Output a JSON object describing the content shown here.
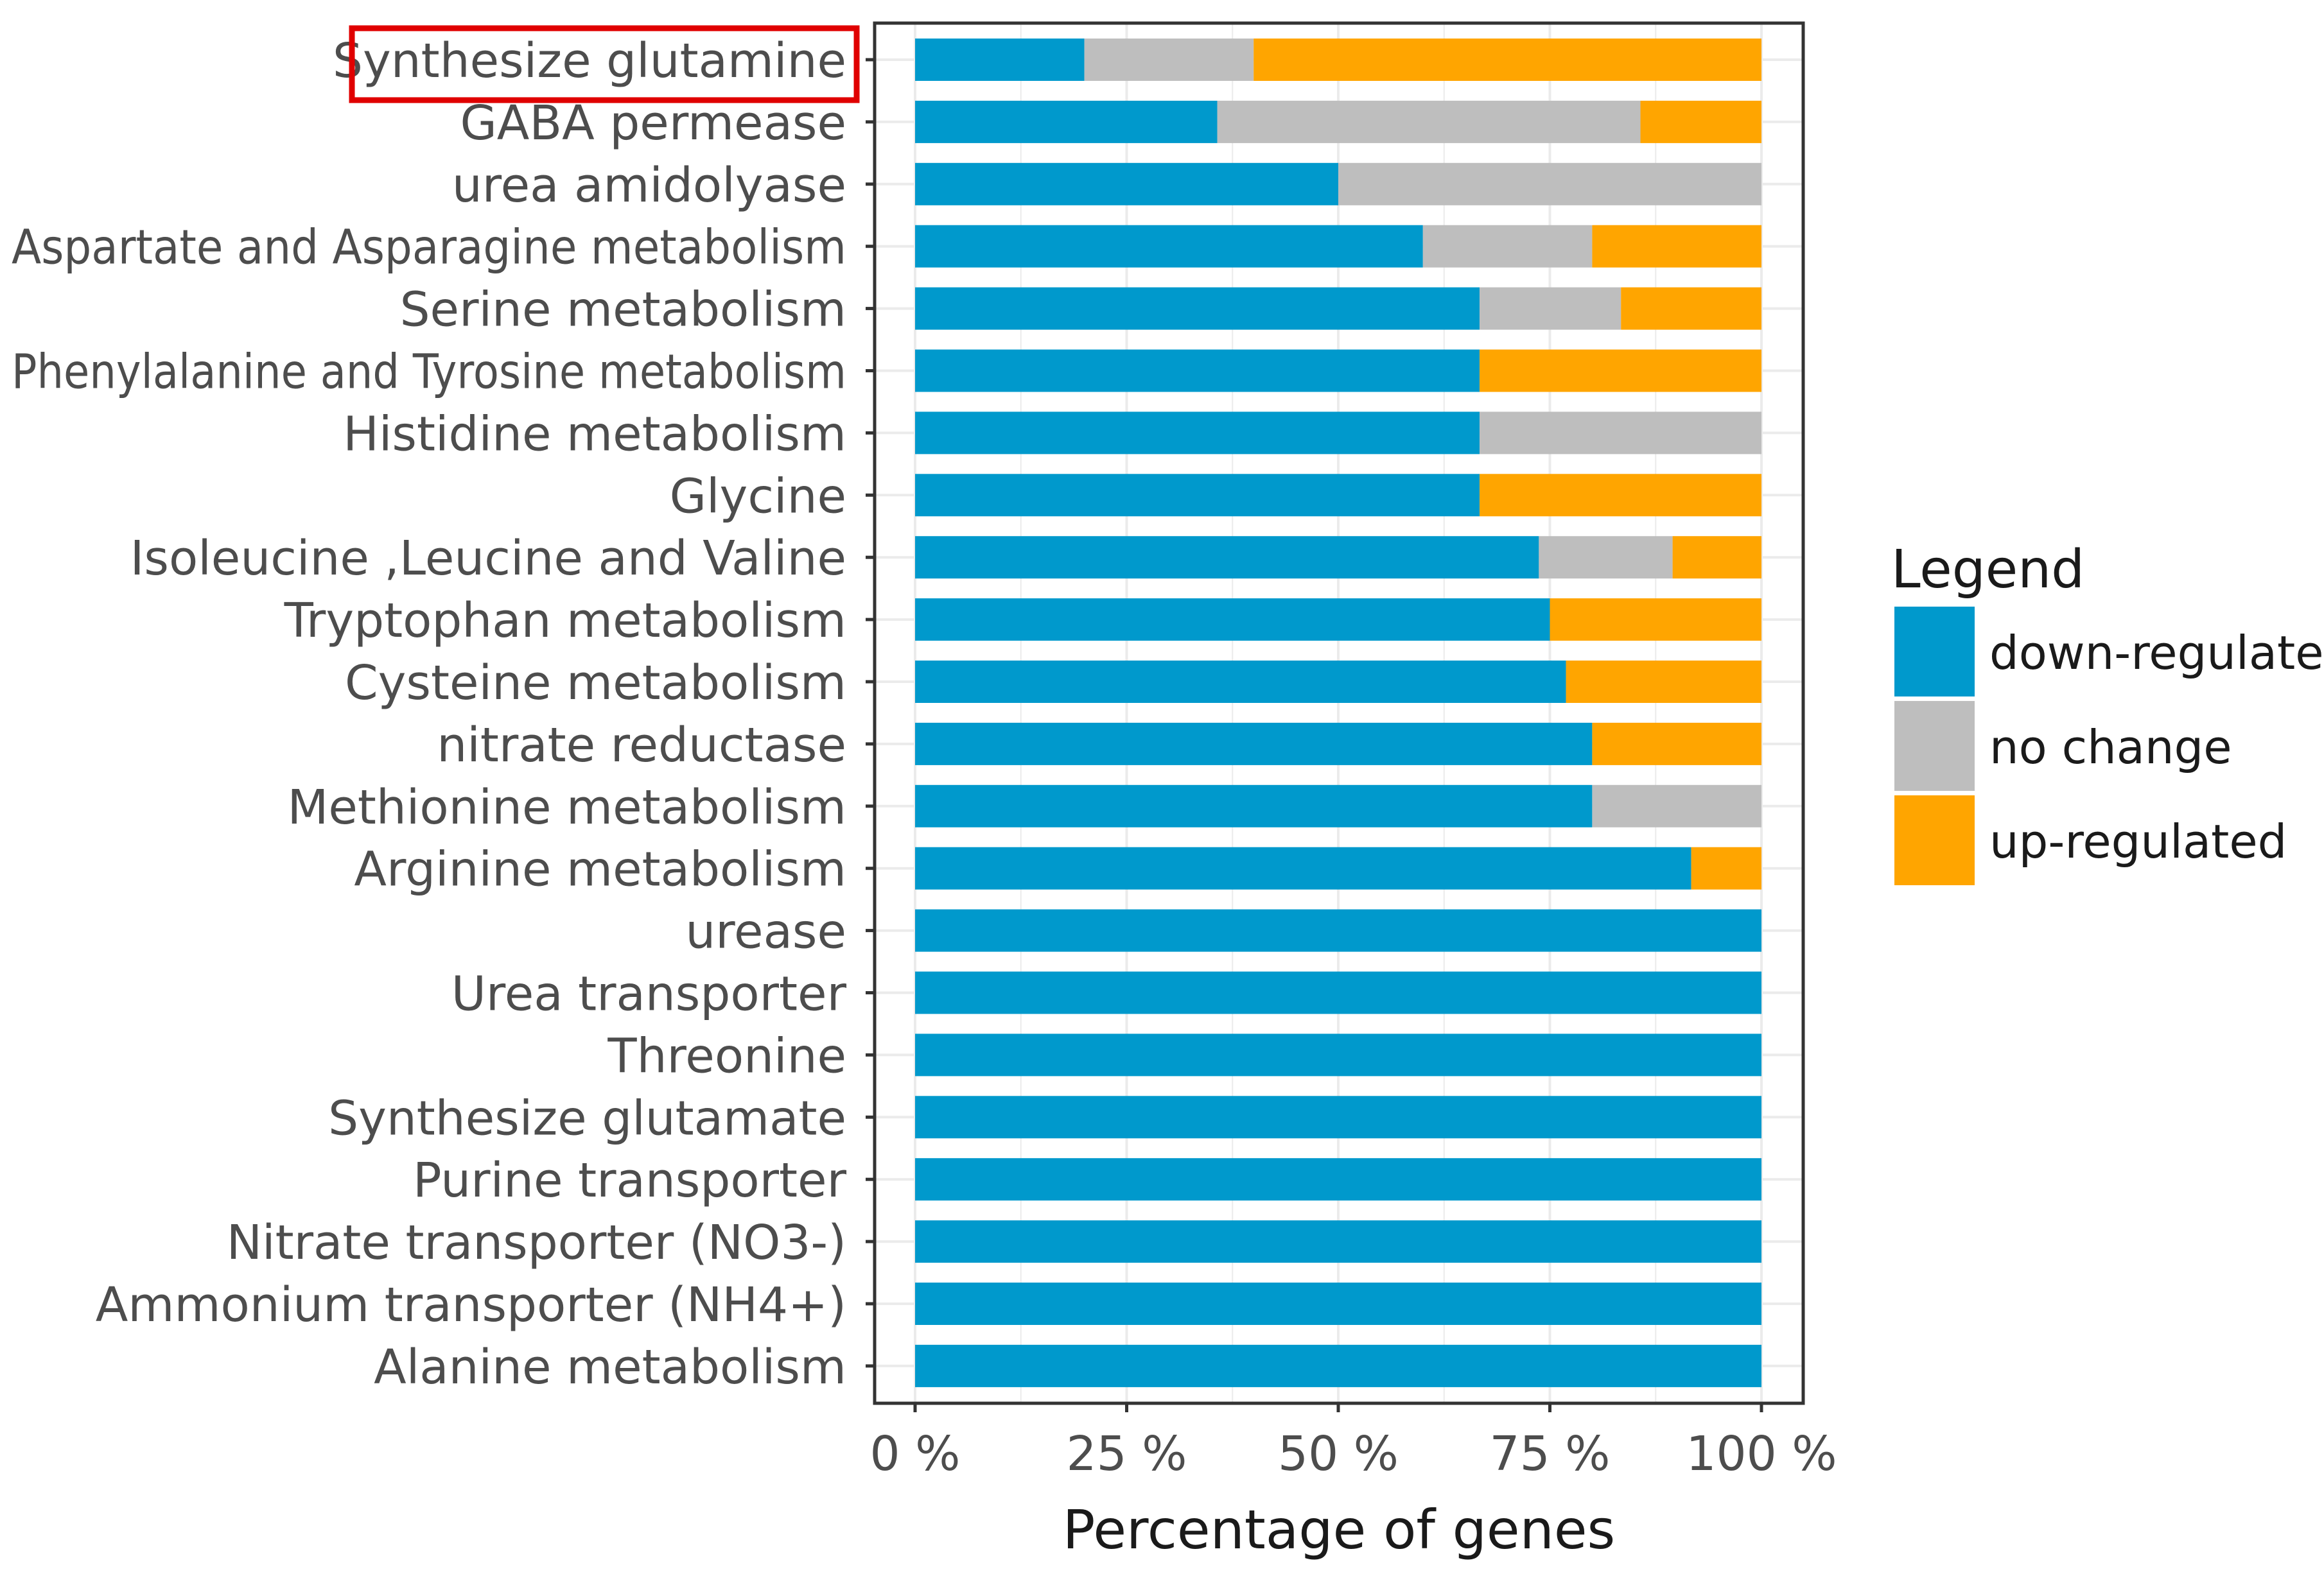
{
  "chart_data": {
    "type": "bar",
    "orientation": "horizontal",
    "stacked": true,
    "title": "",
    "xlabel": "Percentage of genes",
    "ylabel": "",
    "xlim": [
      0,
      100
    ],
    "x_ticks": [
      0,
      25,
      50,
      75,
      100
    ],
    "x_tick_labels": [
      "0 %",
      "25 %",
      "50 %",
      "75 %",
      "100 %"
    ],
    "grid": true,
    "highlighted_category": "Synthesize glutamine",
    "categories": [
      "Synthesize glutamine",
      "GABA permease",
      "urea amidolyase",
      "Aspartate and Asparagine metabolism",
      "Serine metabolism",
      "Phenylalanine and Tyrosine metabolism",
      "Histidine metabolism",
      "Glycine",
      "Isoleucine ,Leucine and Valine",
      "Tryptophan metabolism",
      "Cysteine metabolism",
      "nitrate reductase",
      "Methionine metabolism",
      "Arginine metabolism",
      "urease",
      "Urea transporter",
      "Threonine",
      "Synthesize glutamate",
      "Purine transporter",
      "Nitrate transporter (NO3-)",
      "Ammonium transporter (NH4+)",
      "Alanine metabolism"
    ],
    "series": [
      {
        "name": "down-regulated",
        "color": "#0099CC",
        "values": [
          20,
          35.7,
          50,
          60,
          66.7,
          66.7,
          66.7,
          66.7,
          73.7,
          75,
          76.9,
          80,
          80,
          91.7,
          100,
          100,
          100,
          100,
          100,
          100,
          100,
          100
        ]
      },
      {
        "name": "no change",
        "color": "#BEBEBE",
        "values": [
          20,
          50,
          50,
          20,
          16.7,
          0,
          33.3,
          0,
          15.8,
          0,
          0,
          0,
          20,
          0,
          0,
          0,
          0,
          0,
          0,
          0,
          0,
          0
        ]
      },
      {
        "name": "up-regulated",
        "color": "#FFA500",
        "values": [
          60,
          14.3,
          0,
          20,
          16.6,
          33.3,
          0,
          33.3,
          10.5,
          25,
          23.1,
          20,
          0,
          8.3,
          0,
          0,
          0,
          0,
          0,
          0,
          0,
          0
        ]
      }
    ],
    "legend": {
      "title": "Legend",
      "position": "right"
    }
  }
}
